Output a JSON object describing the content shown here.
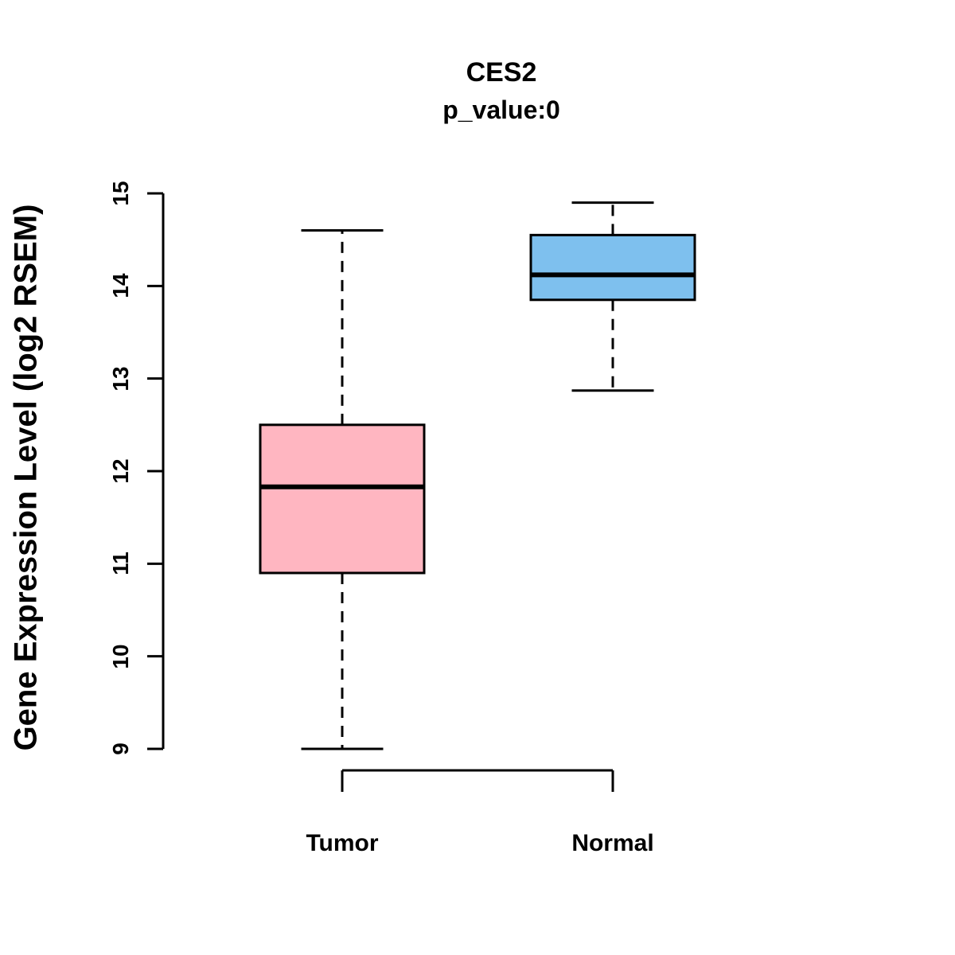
{
  "chart_data": {
    "type": "boxplot",
    "title": "CES2",
    "subtitle": "p_value:0",
    "ylabel": "Gene Expression Level (log2 RSEM)",
    "ylim": [
      9,
      15
    ],
    "yticks": [
      9,
      10,
      11,
      12,
      13,
      14,
      15
    ],
    "grid": "off",
    "legend": "none",
    "groups": [
      {
        "label": "Tumor",
        "color": "#FFB6C1",
        "stats": {
          "lower_whisker": 9.0,
          "q1": 10.9,
          "median": 11.83,
          "q3": 12.5,
          "upper_whisker": 14.6
        }
      },
      {
        "label": "Normal",
        "color": "#7EC0EE",
        "stats": {
          "lower_whisker": 12.87,
          "q1": 13.85,
          "median": 14.12,
          "q3": 14.55,
          "upper_whisker": 14.9
        }
      }
    ]
  }
}
